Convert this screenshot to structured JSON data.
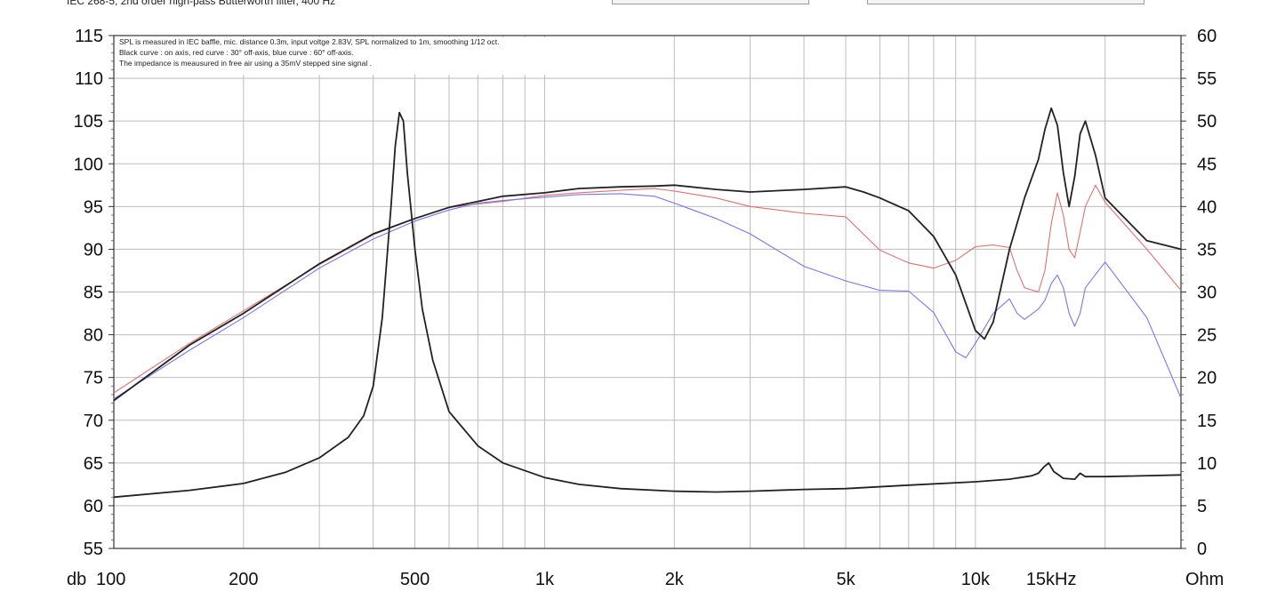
{
  "header": {
    "caption": "IEC 268-5, 2nd order high-pass Butterworth filter, 400 Hz"
  },
  "notes": [
    "SPL is measured in IEC baffle, mic. distance 0.3m, input voltge 2.83V, SPL normalized to 1m, smoothing 1/12 oct.",
    "Black curve : on axis, red curve : 30° off-axis, blue curve : 60° off-axis.",
    "The impedance is meausured in free air using a 35mV stepped sine signal ."
  ],
  "chart_data": {
    "type": "line",
    "title": "",
    "xlabel": "",
    "y_left_unit": "db",
    "y_right_unit": "Ohm",
    "x_scale": "log",
    "xlim": [
      100,
      30000
    ],
    "ylim_left": [
      55,
      115
    ],
    "ylim_right": [
      0,
      60
    ],
    "grid": true,
    "x_tick_labels": [
      {
        "value": 100,
        "label": "100"
      },
      {
        "value": 200,
        "label": "200"
      },
      {
        "value": 500,
        "label": "500"
      },
      {
        "value": 1000,
        "label": "1k"
      },
      {
        "value": 2000,
        "label": "2k"
      },
      {
        "value": 5000,
        "label": "5k"
      },
      {
        "value": 10000,
        "label": "10k"
      },
      {
        "value": 15000,
        "label": "15kHz"
      }
    ],
    "y_left_ticks": [
      55,
      60,
      65,
      70,
      75,
      80,
      85,
      90,
      95,
      100,
      105,
      110,
      115
    ],
    "y_right_ticks": [
      0,
      5,
      10,
      15,
      20,
      25,
      30,
      35,
      40,
      45,
      50,
      55,
      60
    ],
    "series": [
      {
        "color": "#e07070",
        "axis": "left",
        "x": [
          100,
          150,
          200,
          300,
          400,
          500,
          600,
          700,
          800,
          1000,
          1200,
          1500,
          1800,
          2000,
          2500,
          3000,
          4000,
          5000,
          6000,
          7000,
          8000,
          9000,
          10000,
          11000,
          12000,
          12500,
          13000,
          14000,
          14500,
          15000,
          15500,
          16000,
          16500,
          17000,
          17500,
          18000,
          19000,
          20000,
          25000,
          30000
        ],
        "y": [
          73.2,
          79.0,
          82.8,
          88.2,
          91.7,
          93.6,
          94.9,
          95.3,
          95.6,
          96.3,
          96.6,
          96.9,
          97.1,
          96.8,
          96.0,
          95.0,
          94.2,
          93.8,
          89.9,
          88.4,
          87.8,
          88.7,
          90.3,
          90.5,
          90.2,
          87.5,
          85.5,
          85.0,
          87.5,
          93.0,
          96.6,
          94.0,
          90.0,
          89.0,
          92.0,
          95.0,
          97.5,
          95.5,
          90.0,
          85.2
        ]
      },
      {
        "color": "#7777ee",
        "axis": "left",
        "x": [
          100,
          150,
          200,
          300,
          400,
          500,
          600,
          700,
          800,
          1000,
          1200,
          1500,
          1800,
          2000,
          2500,
          3000,
          4000,
          5000,
          6000,
          7000,
          8000,
          9000,
          9500,
          10000,
          11000,
          12000,
          12500,
          13000,
          14000,
          14500,
          15000,
          15500,
          16000,
          16500,
          17000,
          17500,
          18000,
          20000,
          25000,
          30000
        ],
        "y": [
          72.5,
          78.2,
          82.0,
          87.8,
          91.2,
          93.3,
          94.6,
          95.4,
          95.7,
          96.1,
          96.4,
          96.5,
          96.2,
          95.4,
          93.6,
          91.8,
          88.0,
          86.3,
          85.2,
          85.1,
          82.6,
          78.0,
          77.3,
          79.0,
          82.5,
          84.2,
          82.5,
          81.8,
          83.0,
          84.0,
          86.0,
          87.0,
          85.5,
          82.5,
          81.0,
          82.5,
          85.5,
          88.5,
          82.0,
          72.6
        ]
      },
      {
        "color": "#222222",
        "axis": "left",
        "x": [
          100,
          150,
          200,
          300,
          400,
          500,
          600,
          700,
          800,
          1000,
          1200,
          1500,
          1800,
          2000,
          2500,
          3000,
          4000,
          5000,
          5500,
          6000,
          7000,
          8000,
          9000,
          10000,
          10500,
          11000,
          12000,
          13000,
          14000,
          14500,
          15000,
          15500,
          16000,
          16500,
          17000,
          17500,
          18000,
          19000,
          20000,
          25000,
          30000
        ],
        "y": [
          72.3,
          78.8,
          82.5,
          88.3,
          91.8,
          93.6,
          94.9,
          95.6,
          96.2,
          96.6,
          97.1,
          97.3,
          97.4,
          97.5,
          97.0,
          96.7,
          97.0,
          97.3,
          96.7,
          96.0,
          94.5,
          91.5,
          87.0,
          80.5,
          79.5,
          81.5,
          90.0,
          96.0,
          100.5,
          104.0,
          106.5,
          104.5,
          99.0,
          95.0,
          98.5,
          103.5,
          105.0,
          101.0,
          96.0,
          91.0,
          90.0
        ]
      },
      {
        "color": "#222222",
        "axis": "right",
        "x": [
          100,
          150,
          200,
          250,
          300,
          350,
          380,
          400,
          420,
          440,
          450,
          460,
          470,
          480,
          500,
          520,
          550,
          600,
          700,
          800,
          1000,
          1200,
          1500,
          2000,
          2500,
          3000,
          4000,
          5000,
          7000,
          10000,
          12000,
          13500,
          14000,
          14400,
          14800,
          15200,
          16000,
          17000,
          17500,
          18000,
          20000,
          30000
        ],
        "y": [
          6.0,
          6.8,
          7.6,
          8.9,
          10.6,
          13.0,
          15.5,
          19.0,
          27.0,
          40.0,
          47.0,
          51.0,
          50.0,
          44.0,
          35.0,
          28.0,
          22.0,
          16.0,
          12.0,
          10.0,
          8.3,
          7.5,
          7.0,
          6.7,
          6.6,
          6.7,
          6.9,
          7.0,
          7.4,
          7.8,
          8.1,
          8.5,
          8.8,
          9.5,
          10.0,
          9.0,
          8.2,
          8.1,
          8.8,
          8.4,
          8.4,
          8.6
        ]
      }
    ]
  }
}
